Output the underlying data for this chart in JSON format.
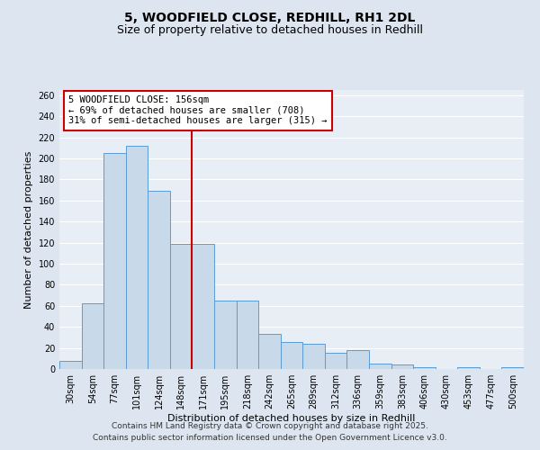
{
  "title": "5, WOODFIELD CLOSE, REDHILL, RH1 2DL",
  "subtitle": "Size of property relative to detached houses in Redhill",
  "xlabel": "Distribution of detached houses by size in Redhill",
  "ylabel": "Number of detached properties",
  "categories": [
    "30sqm",
    "54sqm",
    "77sqm",
    "101sqm",
    "124sqm",
    "148sqm",
    "171sqm",
    "195sqm",
    "218sqm",
    "242sqm",
    "265sqm",
    "289sqm",
    "312sqm",
    "336sqm",
    "359sqm",
    "383sqm",
    "406sqm",
    "430sqm",
    "453sqm",
    "477sqm",
    "500sqm"
  ],
  "bar_values": [
    8,
    62,
    205,
    212,
    169,
    119,
    119,
    65,
    65,
    33,
    26,
    24,
    15,
    18,
    5,
    4,
    2,
    0,
    2,
    0,
    2
  ],
  "bar_color": "#c8d9ea",
  "bar_edge_color": "#5b9bd5",
  "ylim": [
    0,
    265
  ],
  "yticks": [
    0,
    20,
    40,
    60,
    80,
    100,
    120,
    140,
    160,
    180,
    200,
    220,
    240,
    260
  ],
  "vline_x": 5.5,
  "vline_color": "#cc0000",
  "annotation_text": "5 WOODFIELD CLOSE: 156sqm\n← 69% of detached houses are smaller (708)\n31% of semi-detached houses are larger (315) →",
  "annotation_box_color": "#ffffff",
  "annotation_box_edge": "#cc0000",
  "footer_line1": "Contains HM Land Registry data © Crown copyright and database right 2025.",
  "footer_line2": "Contains public sector information licensed under the Open Government Licence v3.0.",
  "bg_color": "#dde6f0",
  "plot_bg_color": "#e8eef5",
  "grid_color": "#ffffff",
  "title_fontsize": 10,
  "subtitle_fontsize": 9,
  "axis_label_fontsize": 8,
  "tick_fontsize": 7,
  "footer_fontsize": 6.5,
  "annotation_fontsize": 7.5
}
